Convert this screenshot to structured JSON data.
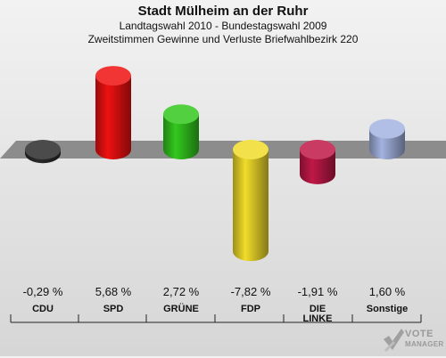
{
  "header": {
    "title": "Stadt Mülheim an der Ruhr",
    "subtitle1": "Landtagswahl 2010 - Bundestagswahl 2009",
    "subtitle2": "Zweitstimmen Gewinne und Verluste Briefwahlbezirk 220"
  },
  "watermark": {
    "logo_icon": "checkmark-x-icon",
    "line1": "VOTE",
    "line2": "MANAGER"
  },
  "chart_data": {
    "type": "bar",
    "title": "Stadt Mülheim an der Ruhr",
    "subtitle": "Landtagswahl 2010 - Bundestagswahl 2009 / Zweitstimmen Gewinne und Verluste Briefwahlbezirk 220",
    "categories": [
      "CDU",
      "SPD",
      "GRÜNE",
      "FDP",
      "DIE LINKE",
      "Sonstige"
    ],
    "series": [
      {
        "values": [
          -0.29,
          5.68,
          2.72,
          -7.82,
          -1.91,
          1.6
        ],
        "value_labels": [
          "-0,29 %",
          "5,68 %",
          "2,72 %",
          "-7,82 %",
          "-1,91 %",
          "1,60 %"
        ],
        "colors": [
          "#2b2b2b",
          "#ee1111",
          "#33c81e",
          "#f0dc2a",
          "#c01848",
          "#a3b3e0"
        ]
      }
    ],
    "xlabel": "",
    "ylabel": "",
    "ylim": [
      -8,
      6
    ],
    "grid": false,
    "legend": "none"
  }
}
